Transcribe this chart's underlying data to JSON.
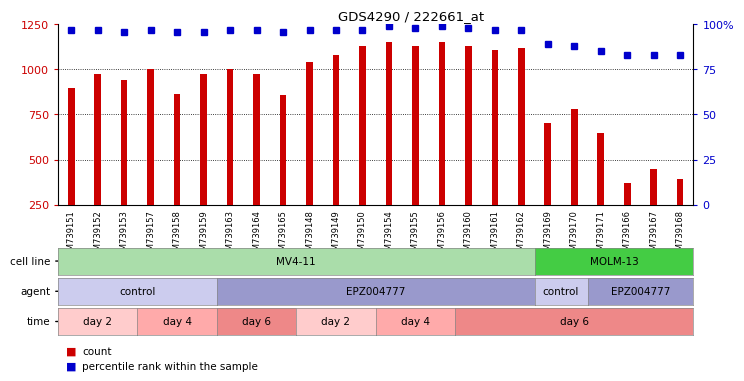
{
  "title": "GDS4290 / 222661_at",
  "samples": [
    "GSM739151",
    "GSM739152",
    "GSM739153",
    "GSM739157",
    "GSM739158",
    "GSM739159",
    "GSM739163",
    "GSM739164",
    "GSM739165",
    "GSM739148",
    "GSM739149",
    "GSM739150",
    "GSM739154",
    "GSM739155",
    "GSM739156",
    "GSM739160",
    "GSM739161",
    "GSM739162",
    "GSM739169",
    "GSM739170",
    "GSM739171",
    "GSM739166",
    "GSM739167",
    "GSM739168"
  ],
  "counts": [
    895,
    975,
    940,
    1005,
    865,
    975,
    1005,
    975,
    860,
    1040,
    1080,
    1130,
    1155,
    1130,
    1155,
    1130,
    1110,
    1120,
    700,
    780,
    650,
    370,
    450,
    390
  ],
  "percentile": [
    97,
    97,
    96,
    97,
    96,
    96,
    97,
    97,
    96,
    97,
    97,
    97,
    99,
    98,
    99,
    98,
    97,
    97,
    89,
    88,
    85,
    83,
    83,
    83
  ],
  "ymin": 250,
  "ymax": 1250,
  "yticks": [
    250,
    500,
    750,
    1000,
    1250
  ],
  "right_yticks": [
    0,
    25,
    50,
    75,
    100
  ],
  "bar_color": "#cc0000",
  "dot_color": "#0000cc",
  "grid_color": "#000000",
  "cell_lines": [
    {
      "label": "MV4-11",
      "start": 0,
      "end": 18,
      "color": "#aaddaa"
    },
    {
      "label": "MOLM-13",
      "start": 18,
      "end": 24,
      "color": "#44cc44"
    }
  ],
  "agents": [
    {
      "label": "control",
      "start": 0,
      "end": 6,
      "color": "#ccccee"
    },
    {
      "label": "EPZ004777",
      "start": 6,
      "end": 18,
      "color": "#9999cc"
    },
    {
      "label": "control",
      "start": 18,
      "end": 20,
      "color": "#ccccee"
    },
    {
      "label": "EPZ004777",
      "start": 20,
      "end": 24,
      "color": "#9999cc"
    }
  ],
  "times": [
    {
      "label": "day 2",
      "start": 0,
      "end": 3,
      "color": "#ffcccc"
    },
    {
      "label": "day 4",
      "start": 3,
      "end": 6,
      "color": "#ffaaaa"
    },
    {
      "label": "day 6",
      "start": 6,
      "end": 9,
      "color": "#ee8888"
    },
    {
      "label": "day 2",
      "start": 9,
      "end": 12,
      "color": "#ffcccc"
    },
    {
      "label": "day 4",
      "start": 12,
      "end": 15,
      "color": "#ffaaaa"
    },
    {
      "label": "day 6",
      "start": 15,
      "end": 24,
      "color": "#ee8888"
    }
  ],
  "legend_items": [
    {
      "color": "#cc0000",
      "label": "count"
    },
    {
      "color": "#0000cc",
      "label": "percentile rank within the sample"
    }
  ]
}
